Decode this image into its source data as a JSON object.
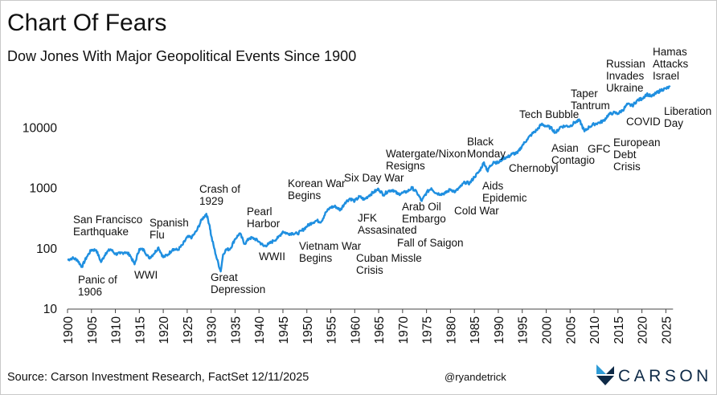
{
  "title": "Chart Of Fears",
  "subtitle": "Dow Jones With Major Geopolitical Events Since 1900",
  "source": "Source: Carson Investment Research, FactSet 12/11/2025",
  "handle": "@ryandetrick",
  "brand": "CARSON",
  "colors": {
    "line": "#1f8fe0",
    "logo_dark": "#0e2a47",
    "logo_blue": "#2e9bd6"
  },
  "chart_data": {
    "type": "line",
    "title": "Chart Of Fears",
    "subtitle": "Dow Jones With Major Geopolitical Events Since 1900",
    "yscale": "log",
    "ylim": [
      10,
      100000
    ],
    "xlim": [
      1900,
      2026
    ],
    "y_ticks": [
      10,
      100,
      1000,
      10000
    ],
    "x_ticks": [
      1900,
      1905,
      1910,
      1915,
      1920,
      1925,
      1930,
      1935,
      1940,
      1945,
      1950,
      1955,
      1960,
      1965,
      1970,
      1975,
      1980,
      1985,
      1990,
      1995,
      2000,
      2005,
      2010,
      2015,
      2020,
      2025
    ],
    "grid": false,
    "series": [
      {
        "x": [
          1900,
          1901,
          1902,
          1903,
          1904,
          1905,
          1906,
          1907,
          1908,
          1909,
          1910,
          1911,
          1912,
          1913,
          1914,
          1915,
          1916,
          1917,
          1918,
          1919,
          1920,
          1921,
          1922,
          1923,
          1924,
          1925,
          1926,
          1927,
          1928,
          1929,
          1929.7,
          1930,
          1931,
          1932,
          1932.5,
          1933,
          1934,
          1935,
          1936,
          1937,
          1938,
          1939,
          1940,
          1941,
          1942,
          1943,
          1944,
          1945,
          1946,
          1947,
          1948,
          1949,
          1950,
          1951,
          1952,
          1953,
          1954,
          1955,
          1956,
          1957,
          1958,
          1959,
          1960,
          1961,
          1962,
          1963,
          1964,
          1965,
          1966,
          1967,
          1968,
          1969,
          1970,
          1971,
          1972,
          1973,
          1974,
          1975,
          1976,
          1977,
          1978,
          1979,
          1980,
          1981,
          1982,
          1983,
          1984,
          1985,
          1986,
          1987,
          1987.8,
          1988,
          1989,
          1990,
          1991,
          1992,
          1993,
          1994,
          1995,
          1996,
          1997,
          1998,
          1999,
          2000,
          2001,
          2002,
          2003,
          2004,
          2005,
          2006,
          2007,
          2008,
          2009,
          2010,
          2011,
          2012,
          2013,
          2014,
          2015,
          2016,
          2017,
          2018,
          2019,
          2020,
          2021,
          2022,
          2023,
          2024,
          2025,
          2025.9
        ],
        "values": [
          65,
          70,
          66,
          50,
          73,
          96,
          95,
          60,
          85,
          98,
          82,
          83,
          88,
          80,
          55,
          99,
          95,
          70,
          82,
          105,
          72,
          80,
          99,
          95,
          115,
          155,
          155,
          200,
          300,
          380,
          240,
          165,
          78,
          42,
          80,
          95,
          100,
          145,
          180,
          120,
          150,
          148,
          131,
          110,
          119,
          135,
          152,
          193,
          177,
          181,
          177,
          200,
          235,
          269,
          292,
          280,
          404,
          488,
          500,
          436,
          584,
          679,
          615,
          731,
          652,
          763,
          874,
          969,
          785,
          905,
          944,
          800,
          839,
          890,
          1020,
          850,
          616,
          852,
          1005,
          831,
          805,
          838,
          964,
          875,
          1046,
          1258,
          1212,
          1547,
          1896,
          2700,
          1900,
          2169,
          2753,
          2634,
          3169,
          3301,
          3754,
          3834,
          5117,
          6448,
          7908,
          9181,
          11497,
          10787,
          10022,
          8342,
          10454,
          10783,
          10718,
          12463,
          13265,
          8776,
          10428,
          11578,
          12218,
          13104,
          16577,
          17823,
          17425,
          19763,
          24719,
          23327,
          28538,
          30606,
          36338,
          33147,
          37690,
          42544,
          45000,
          47900
        ]
      }
    ],
    "annotations": [
      {
        "text": "San Francisco\nEarthquake",
        "year": 1906
      },
      {
        "text": "Panic of\n1906",
        "year": 1907
      },
      {
        "text": "WWI",
        "year": 1914
      },
      {
        "text": "Spanish\nFlu",
        "year": 1918
      },
      {
        "text": "Crash of\n1929",
        "year": 1929
      },
      {
        "text": "Great\nDepression",
        "year": 1932
      },
      {
        "text": "Pearl\nHarbor",
        "year": 1941
      },
      {
        "text": "WWII",
        "year": 1942
      },
      {
        "text": "Korean War\nBegins",
        "year": 1950
      },
      {
        "text": "Vietnam War\nBegins",
        "year": 1955
      },
      {
        "text": "Six Day War",
        "year": 1967
      },
      {
        "text": "JFK\nAssasinated",
        "year": 1963
      },
      {
        "text": "Cuban Missle\nCrisis",
        "year": 1962
      },
      {
        "text": "Watergate/Nixon\nResigns",
        "year": 1974
      },
      {
        "text": "Arab Oil\nEmbargo",
        "year": 1973
      },
      {
        "text": "Fall of Saigon",
        "year": 1975
      },
      {
        "text": "Black\nMonday",
        "year": 1987
      },
      {
        "text": "Aids\nEpidemic",
        "year": 1987
      },
      {
        "text": "Cold War",
        "year": 1989
      },
      {
        "text": "Chernobyl",
        "year": 1986
      },
      {
        "text": "Tech Bubble",
        "year": 2000
      },
      {
        "text": "Asian\nContagio",
        "year": 1997
      },
      {
        "text": "Taper\nTantrum",
        "year": 2013
      },
      {
        "text": "GFC",
        "year": 2008
      },
      {
        "text": "European\nDebt\nCrisis",
        "year": 2011
      },
      {
        "text": "Russian\nInvades\nUkraine",
        "year": 2022
      },
      {
        "text": "COVID",
        "year": 2020
      },
      {
        "text": "Hamas\nAttacks\nIsrael",
        "year": 2023
      },
      {
        "text": "Liberation\nDay",
        "year": 2025
      }
    ]
  }
}
